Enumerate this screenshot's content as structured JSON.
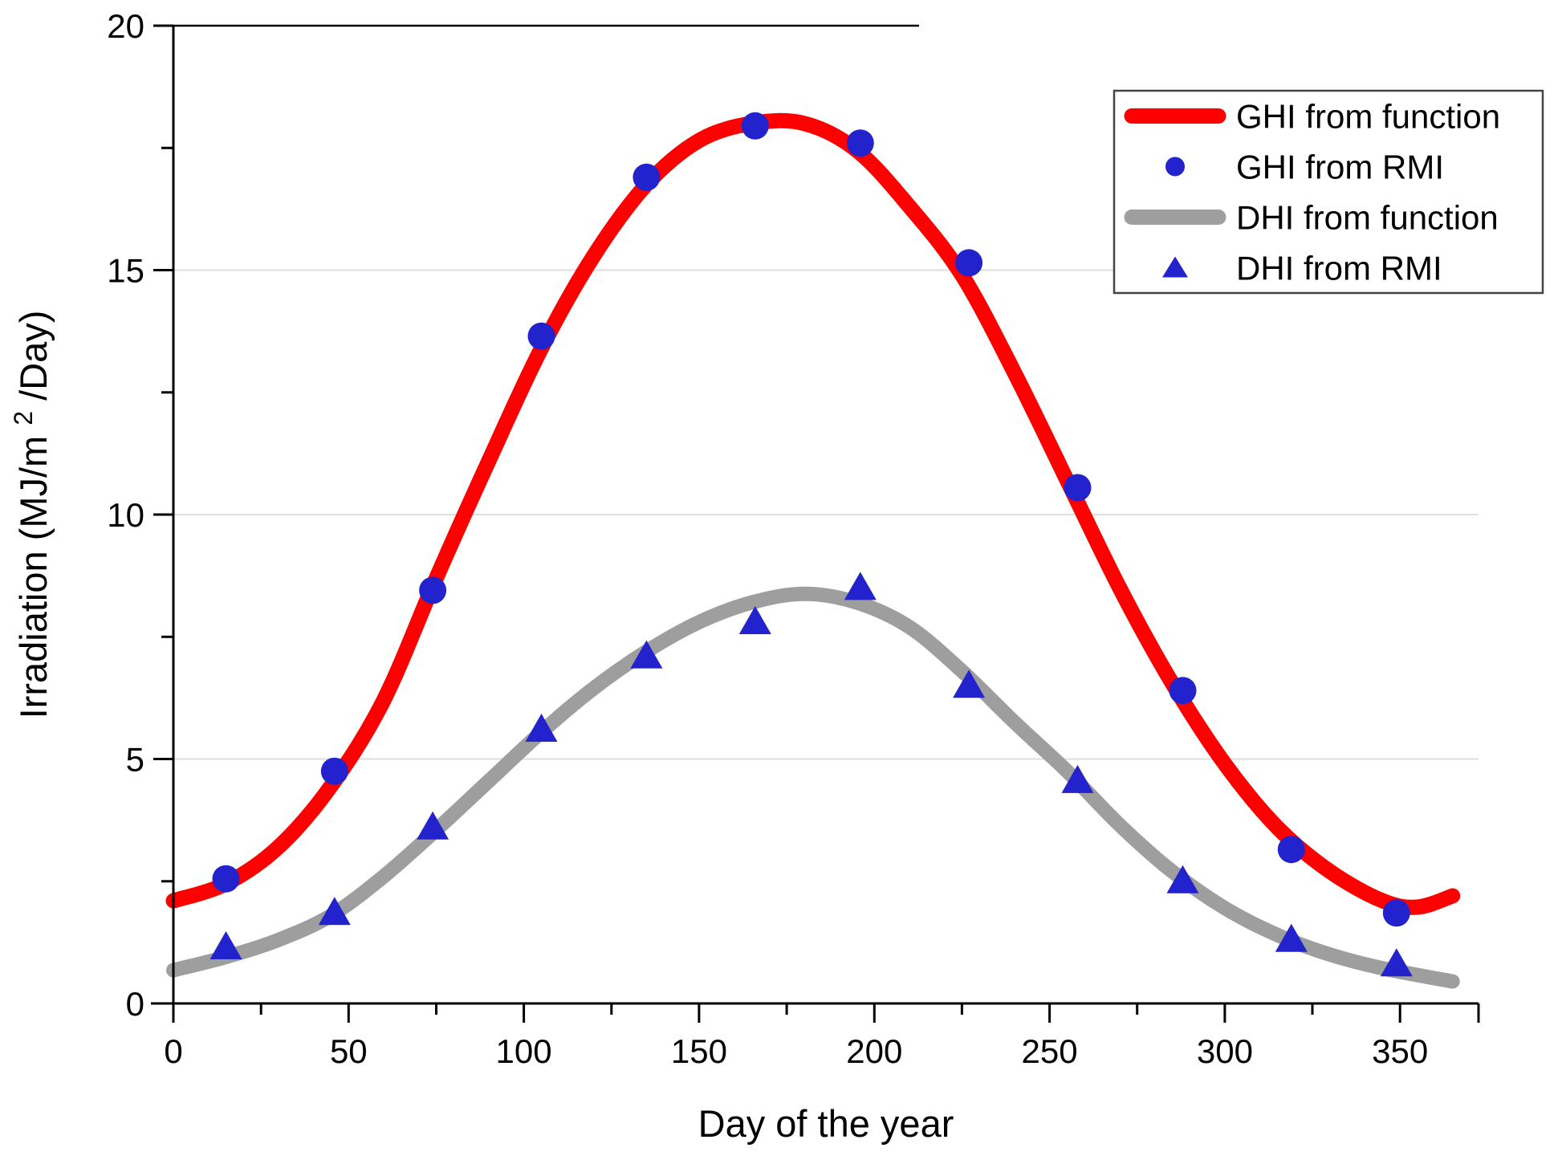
{
  "chart_data": {
    "type": "line",
    "title": "",
    "xlabel": "Day of the year",
    "ylabel": "Irradiation (MJ/m2/Day)",
    "ylabel_parts": {
      "prefix": "Irradiation (MJ/m",
      "sup": "2",
      "suffix": "/Day)"
    },
    "xlim": [
      0,
      372
    ],
    "ylim": [
      0,
      20
    ],
    "grid": "horizontal-only",
    "gridline_values": [
      5,
      10,
      15
    ],
    "x_major_ticks": [
      0,
      50,
      100,
      150,
      200,
      250,
      300,
      350
    ],
    "x_minor_ticks": [
      25,
      75,
      125,
      175,
      225,
      275,
      325
    ],
    "x_tick_labels": [
      "0",
      "50",
      "100",
      "150",
      "200",
      "250",
      "300",
      "350"
    ],
    "y_major_ticks": [
      0,
      5,
      10,
      15,
      20
    ],
    "y_minor_ticks": [
      2.5,
      7.5,
      12.5,
      17.5
    ],
    "y_tick_labels": [
      "0",
      "5",
      "10",
      "15",
      "20"
    ],
    "legend": {
      "position": "top-right",
      "entries": [
        {
          "label": "GHI from function",
          "swatch": "line",
          "color": "#ff0000"
        },
        {
          "label": "GHI from RMI",
          "swatch": "circle",
          "color": "#2323cd"
        },
        {
          "label": "DHI from function",
          "swatch": "line",
          "color": "#9e9e9e"
        },
        {
          "label": "DHI from RMI",
          "swatch": "triangle",
          "color": "#2323cd"
        }
      ]
    },
    "series": [
      {
        "name": "GHI from function",
        "kind": "curve",
        "color": "#ff0000",
        "stroke_width": 19,
        "points": [
          [
            0,
            2.1
          ],
          [
            15,
            2.45
          ],
          [
            30,
            3.2
          ],
          [
            45,
            4.45
          ],
          [
            60,
            6.2
          ],
          [
            75,
            8.7
          ],
          [
            90,
            11.1
          ],
          [
            105,
            13.4
          ],
          [
            120,
            15.3
          ],
          [
            135,
            16.75
          ],
          [
            150,
            17.65
          ],
          [
            165,
            18.0
          ],
          [
            180,
            18.0
          ],
          [
            195,
            17.45
          ],
          [
            210,
            16.3
          ],
          [
            225,
            14.9
          ],
          [
            240,
            12.9
          ],
          [
            255,
            10.7
          ],
          [
            270,
            8.5
          ],
          [
            285,
            6.55
          ],
          [
            300,
            4.9
          ],
          [
            315,
            3.6
          ],
          [
            330,
            2.7
          ],
          [
            345,
            2.1
          ],
          [
            355,
            1.97
          ],
          [
            365,
            2.2
          ]
        ]
      },
      {
        "name": "GHI from RMI",
        "kind": "scatter",
        "marker": "circle",
        "color": "#2323cd",
        "points": [
          [
            15,
            2.55
          ],
          [
            46,
            4.75
          ],
          [
            74,
            8.45
          ],
          [
            105,
            13.65
          ],
          [
            135,
            16.9
          ],
          [
            166,
            17.95
          ],
          [
            196,
            17.6
          ],
          [
            227,
            15.15
          ],
          [
            258,
            10.55
          ],
          [
            288,
            6.4
          ],
          [
            319,
            3.15
          ],
          [
            349,
            1.85
          ]
        ]
      },
      {
        "name": "DHI from function",
        "kind": "curve",
        "color": "#9e9e9e",
        "stroke_width": 18,
        "points": [
          [
            0,
            0.68
          ],
          [
            15,
            0.95
          ],
          [
            30,
            1.3
          ],
          [
            45,
            1.8
          ],
          [
            60,
            2.6
          ],
          [
            75,
            3.55
          ],
          [
            90,
            4.55
          ],
          [
            105,
            5.55
          ],
          [
            120,
            6.45
          ],
          [
            135,
            7.2
          ],
          [
            150,
            7.8
          ],
          [
            165,
            8.2
          ],
          [
            180,
            8.38
          ],
          [
            195,
            8.2
          ],
          [
            210,
            7.7
          ],
          [
            225,
            6.8
          ],
          [
            240,
            5.75
          ],
          [
            255,
            4.75
          ],
          [
            270,
            3.65
          ],
          [
            285,
            2.7
          ],
          [
            300,
            1.95
          ],
          [
            315,
            1.4
          ],
          [
            330,
            1.0
          ],
          [
            345,
            0.72
          ],
          [
            365,
            0.45
          ]
        ]
      },
      {
        "name": "DHI from RMI",
        "kind": "scatter",
        "marker": "triangle",
        "color": "#2323cd",
        "points": [
          [
            15,
            1.15
          ],
          [
            46,
            1.85
          ],
          [
            74,
            3.6
          ],
          [
            105,
            5.6
          ],
          [
            135,
            7.1
          ],
          [
            166,
            7.8
          ],
          [
            196,
            8.5
          ],
          [
            227,
            6.5
          ],
          [
            258,
            4.55
          ],
          [
            288,
            2.5
          ],
          [
            319,
            1.3
          ],
          [
            349,
            0.8
          ]
        ]
      }
    ],
    "colors": {
      "ghi_function": "#ff0000",
      "dhi_function": "#9e9e9e",
      "rmi_markers": "#2323cd",
      "axis": "#000000",
      "gridline": "#dedede",
      "legend_border": "#444444"
    }
  }
}
